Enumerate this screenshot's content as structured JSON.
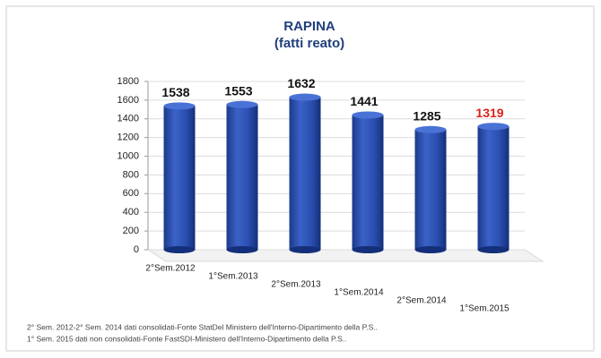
{
  "chart_data": {
    "type": "bar",
    "title": "RAPINA",
    "subtitle": "(fatti reato)",
    "categories": [
      "2°Sem.2012",
      "1°Sem.2013",
      "2°Sem.2013",
      "1°Sem.2014",
      "2°Sem.2014",
      "1°Sem.2015"
    ],
    "values": [
      1538,
      1553,
      1632,
      1441,
      1285,
      1319
    ],
    "value_label_colors": [
      "#111111",
      "#111111",
      "#111111",
      "#111111",
      "#111111",
      "#e0201b"
    ],
    "color": "#2a4fb0",
    "ylim": [
      0,
      1800
    ],
    "yticks": [
      0,
      200,
      400,
      600,
      800,
      1000,
      1200,
      1400,
      1600,
      1800
    ],
    "grid": true,
    "notes": [
      "2° Sem. 2012-2° Sem. 2014 dati consolidati-Fonte StatDel Ministero dell'Interno-Dipartimento della P.S..",
      "1° Sem. 2015 dati non consolidati-Fonte FastSDI-Ministero dell'Interno-Dipartimento della P.S.."
    ]
  }
}
